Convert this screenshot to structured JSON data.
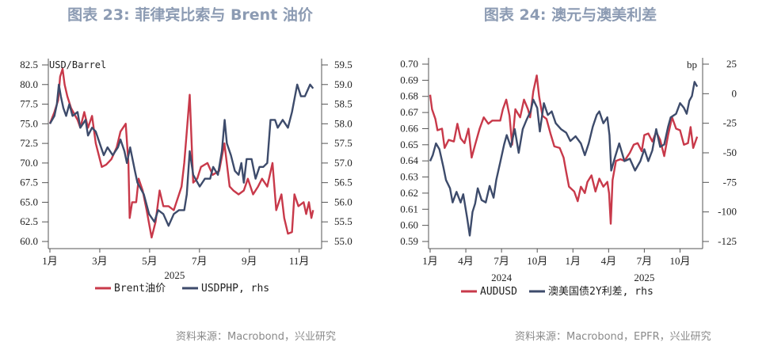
{
  "titles": [
    "图表 23: 菲律宾比索与 Brent 油价",
    "图表 24: 澳元与澳美利差"
  ],
  "sources": [
    "资料来源：Macrobond，兴业研究",
    "资料来源：Macrobond，EPFR，兴业研究"
  ],
  "colors": {
    "red": "#c8394a",
    "navy": "#3d4b6b",
    "title": "#8c9bb3"
  },
  "chart_data": [
    {
      "type": "line",
      "title": "图表 23: 菲律宾比索与 Brent 油价",
      "left_unit": "USD/Barrel",
      "ylim": [
        60,
        82.5
      ],
      "yticks": [
        "82.5",
        "80.0",
        "77.5",
        "75.0",
        "72.5",
        "70.0",
        "67.5",
        "65.0",
        "62.5",
        "60.0"
      ],
      "ylim_right": [
        55,
        59.5
      ],
      "yticks_right": [
        "59.5",
        "59.0",
        "58.5",
        "58.0",
        "57.5",
        "57.0",
        "56.5",
        "56.0",
        "55.5",
        "55.0"
      ],
      "x_unit": "months since Jan 2025",
      "xlim": [
        0,
        10.9
      ],
      "xticks": [
        {
          "x": 0,
          "label": "1月"
        },
        {
          "x": 2,
          "label": "3月"
        },
        {
          "x": 4,
          "label": "5月"
        },
        {
          "x": 6,
          "label": "7月"
        },
        {
          "x": 8,
          "label": "9月"
        },
        {
          "x": 10,
          "label": "11月"
        }
      ],
      "year_labels": [
        {
          "x": 5,
          "label": "2025"
        }
      ],
      "series": [
        {
          "name": "Brent油价",
          "axis": "left",
          "color": "#c8394a",
          "x": [
            0,
            0.18,
            0.33,
            0.41,
            0.51,
            0.59,
            0.7,
            0.85,
            1.11,
            1.22,
            1.38,
            1.53,
            1.69,
            1.84,
            2.08,
            2.26,
            2.47,
            2.68,
            2.83,
            3.04,
            3.15,
            3.2,
            3.3,
            3.46,
            3.56,
            3.72,
            3.88,
            4.08,
            4.24,
            4.4,
            4.55,
            4.76,
            4.97,
            5.18,
            5.28,
            5.39,
            5.49,
            5.61,
            5.75,
            5.91,
            6.06,
            6.32,
            6.53,
            6.79,
            7.0,
            7.21,
            7.36,
            7.57,
            7.78,
            7.94,
            8.15,
            8.35,
            8.51,
            8.72,
            8.93,
            9.08,
            9.29,
            9.4,
            9.55,
            9.71,
            9.81,
            9.97,
            10.18,
            10.28,
            10.39,
            10.49,
            10.56
          ],
          "y": [
            75,
            76.5,
            78,
            81,
            82,
            80,
            78.5,
            77,
            75.5,
            74.5,
            76.5,
            74.5,
            76,
            72.5,
            69.5,
            69.8,
            70.5,
            72,
            74,
            75,
            70,
            63,
            65,
            65,
            68,
            66.5,
            64,
            60.5,
            62.5,
            66.5,
            64.5,
            64.5,
            64,
            66,
            67,
            70,
            74,
            78.7,
            67.5,
            68,
            69.5,
            70,
            68.5,
            69,
            72.5,
            67,
            66.5,
            66,
            66.5,
            68,
            66,
            67,
            68,
            67,
            70,
            64,
            66,
            63,
            61,
            61.2,
            66,
            64.5,
            65,
            63.5,
            65,
            63,
            64
          ]
        },
        {
          "name": "USDPHP, rhs",
          "axis": "right",
          "color": "#3d4b6b",
          "x": [
            0,
            0.18,
            0.28,
            0.36,
            0.44,
            0.54,
            0.65,
            0.78,
            0.91,
            1.11,
            1.22,
            1.43,
            1.53,
            1.69,
            1.84,
            2.0,
            2.16,
            2.31,
            2.52,
            2.73,
            2.83,
            2.99,
            3.09,
            3.22,
            3.41,
            3.51,
            3.77,
            3.98,
            4.19,
            4.34,
            4.55,
            4.76,
            4.97,
            5.18,
            5.39,
            5.49,
            5.61,
            5.75,
            6.01,
            6.22,
            6.43,
            6.55,
            6.74,
            6.9,
            7.01,
            7.1,
            7.26,
            7.42,
            7.57,
            7.68,
            7.78,
            7.89,
            8.09,
            8.25,
            8.41,
            8.56,
            8.72,
            8.85,
            9.03,
            9.14,
            9.34,
            9.55,
            9.71,
            9.92,
            10.07,
            10.23,
            10.44,
            10.56
          ],
          "y": [
            58.0,
            58.2,
            58.5,
            59.0,
            58.7,
            58.4,
            58.2,
            58.5,
            58.2,
            58.3,
            57.9,
            58.1,
            57.7,
            57.9,
            57.8,
            57.5,
            57.2,
            57.4,
            57.2,
            57.4,
            57.6,
            57.3,
            57.0,
            57.4,
            56.8,
            56.5,
            56.2,
            55.7,
            55.5,
            55.8,
            55.7,
            55.4,
            55.7,
            55.8,
            55.8,
            56.2,
            57.3,
            56.7,
            56.4,
            56.6,
            56.6,
            56.9,
            56.7,
            57.3,
            58.1,
            57.5,
            57.2,
            56.8,
            56.7,
            57.0,
            56.5,
            57.1,
            57.1,
            56.6,
            56.9,
            56.9,
            57.0,
            58.1,
            58.1,
            57.9,
            58.1,
            57.9,
            58.3,
            59.0,
            58.7,
            58.7,
            59.0,
            58.9
          ]
        }
      ],
      "legend": "bottom"
    },
    {
      "type": "line",
      "title": "图表 24: 澳元与澳美利差",
      "right_unit": "bp",
      "ylim": [
        0.59,
        0.7
      ],
      "yticks": [
        "0.70",
        "0.69",
        "0.68",
        "0.67",
        "0.66",
        "0.65",
        "0.64",
        "0.63",
        "0.62",
        "0.61",
        "0.60",
        "0.59"
      ],
      "ylim_right": [
        -125,
        25
      ],
      "yticks_right": [
        "25",
        "0",
        "-25",
        "-50",
        "-75",
        "-100",
        "-125"
      ],
      "x_unit": "months since Jan 2024",
      "xlim": [
        0,
        22.9
      ],
      "xticks": [
        {
          "x": 0,
          "label": "1月"
        },
        {
          "x": 3,
          "label": "4月"
        },
        {
          "x": 6,
          "label": "7月"
        },
        {
          "x": 9,
          "label": "10月"
        },
        {
          "x": 12,
          "label": "1月"
        },
        {
          "x": 15,
          "label": "4月"
        },
        {
          "x": 18,
          "label": "7月"
        },
        {
          "x": 21,
          "label": "10月"
        }
      ],
      "year_labels": [
        {
          "x": 6,
          "label": "2024"
        },
        {
          "x": 18,
          "label": "2025"
        }
      ],
      "series": [
        {
          "name": "AUDUSD",
          "axis": "left",
          "color": "#c8394a",
          "x": [
            0,
            0.16,
            0.44,
            0.62,
            1.0,
            1.22,
            1.56,
            2.0,
            2.29,
            2.56,
            2.89,
            3.22,
            3.49,
            3.78,
            4.16,
            4.51,
            4.89,
            5.22,
            5.56,
            5.89,
            6.11,
            6.4,
            6.67,
            6.89,
            7.16,
            7.56,
            7.89,
            8.22,
            8.4,
            8.67,
            8.96,
            9.16,
            9.44,
            9.78,
            10.11,
            10.44,
            10.89,
            11.22,
            11.44,
            11.67,
            12.11,
            12.4,
            12.67,
            13.0,
            13.22,
            13.56,
            13.89,
            14.22,
            14.56,
            14.89,
            15.04,
            15.18,
            15.33,
            15.62,
            16.0,
            16.33,
            16.78,
            17.11,
            17.44,
            17.78,
            18.0,
            18.33,
            18.67,
            19.0,
            19.33,
            19.67,
            20.0,
            20.33,
            20.67,
            21.0,
            21.33,
            21.67,
            21.89,
            22.11,
            22.44
          ],
          "y": [
            0.681,
            0.672,
            0.666,
            0.659,
            0.66,
            0.648,
            0.653,
            0.652,
            0.663,
            0.654,
            0.651,
            0.66,
            0.642,
            0.65,
            0.66,
            0.667,
            0.663,
            0.665,
            0.665,
            0.665,
            0.672,
            0.678,
            0.668,
            0.65,
            0.672,
            0.667,
            0.678,
            0.672,
            0.667,
            0.683,
            0.693,
            0.68,
            0.668,
            0.666,
            0.657,
            0.649,
            0.648,
            0.642,
            0.633,
            0.624,
            0.621,
            0.615,
            0.624,
            0.62,
            0.627,
            0.631,
            0.621,
            0.629,
            0.624,
            0.627,
            0.62,
            0.601,
            0.628,
            0.64,
            0.641,
            0.64,
            0.645,
            0.65,
            0.651,
            0.646,
            0.656,
            0.657,
            0.652,
            0.658,
            0.653,
            0.643,
            0.656,
            0.667,
            0.66,
            0.659,
            0.65,
            0.651,
            0.661,
            0.648,
            0.655
          ]
        },
        {
          "name": "澳美国债2Y利差, rhs",
          "axis": "right",
          "color": "#3d4b6b",
          "x": [
            0,
            0.22,
            0.49,
            0.78,
            1.11,
            1.33,
            1.67,
            1.89,
            2.22,
            2.56,
            2.78,
            3.11,
            3.33,
            3.56,
            3.78,
            4.0,
            4.33,
            4.67,
            5.0,
            5.33,
            5.56,
            5.89,
            6.22,
            6.44,
            6.78,
            7.11,
            7.44,
            7.78,
            8.11,
            8.44,
            8.67,
            9.0,
            9.22,
            9.56,
            9.89,
            10.22,
            10.56,
            11.0,
            11.44,
            11.78,
            12.22,
            12.67,
            13.0,
            13.33,
            13.67,
            14.0,
            14.22,
            14.56,
            14.89,
            15.07,
            15.22,
            15.56,
            15.89,
            16.33,
            16.78,
            17.22,
            17.67,
            18.0,
            18.33,
            18.67,
            19.0,
            19.33,
            19.67,
            20.0,
            20.22,
            20.67,
            21.0,
            21.33,
            21.56,
            21.78,
            22.0,
            22.22,
            22.44
          ],
          "y": [
            -57,
            -52,
            -42,
            -47,
            -62,
            -73,
            -80,
            -92,
            -83,
            -92,
            -85,
            -105,
            -120,
            -100,
            -93,
            -80,
            -90,
            -92,
            -78,
            -88,
            -73,
            -58,
            -43,
            -35,
            -45,
            -30,
            -50,
            -30,
            -22,
            -15,
            -5,
            -12,
            -32,
            -8,
            -18,
            -15,
            -25,
            -30,
            -33,
            -40,
            -36,
            -42,
            -52,
            -42,
            -28,
            -18,
            -15,
            -25,
            -20,
            -35,
            -65,
            -53,
            -42,
            -57,
            -55,
            -65,
            -57,
            -47,
            -57,
            -48,
            -30,
            -45,
            -43,
            -28,
            -20,
            -17,
            -8,
            -12,
            -17,
            -6,
            -2,
            10,
            6
          ]
        }
      ],
      "legend": "bottom"
    }
  ]
}
